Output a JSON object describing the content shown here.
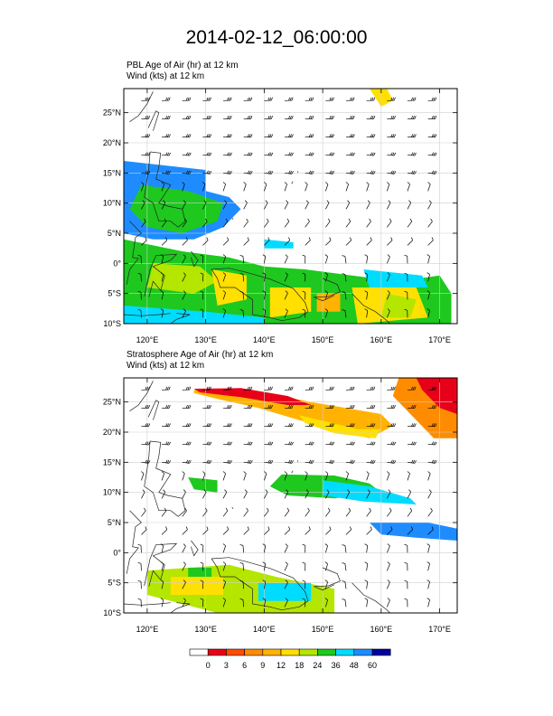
{
  "page": {
    "title": "2014-02-12_06:00:00"
  },
  "panels": [
    {
      "id": "pbl",
      "line1": "PBL Age of Air   (hr)     at   12 km",
      "line2": "Wind    (kts)     at   12 km",
      "lat_ticks": [
        "25°N",
        "20°N",
        "15°N",
        "10°N",
        "5°N",
        "0°",
        "5°S",
        "10°S"
      ],
      "lon_ticks": [
        "120°E",
        "130°E",
        "140°E",
        "150°E",
        "160°E",
        "170°E"
      ]
    },
    {
      "id": "strat",
      "line1": "Stratosphere Age of Air   (hr)     at   12 km",
      "line2": "Wind    (kts)     at   12 km",
      "lat_ticks": [
        "25°N",
        "20°N",
        "15°N",
        "10°N",
        "5°N",
        "0°",
        "5°S",
        "10°S"
      ],
      "lon_ticks": [
        "120°E",
        "130°E",
        "140°E",
        "150°E",
        "160°E",
        "170°E"
      ]
    }
  ],
  "map_extent": {
    "lon": [
      116,
      173
    ],
    "lat": [
      -10,
      29
    ]
  },
  "colorbar": {
    "labels": [
      "0",
      "3",
      "6",
      "9",
      "12",
      "18",
      "24",
      "36",
      "48",
      "60"
    ],
    "colors": [
      "#ffffff",
      "#e8001a",
      "#ff4d00",
      "#ff8c00",
      "#ffb300",
      "#ffe000",
      "#b4e600",
      "#1ec81e",
      "#00dcff",
      "#1e8cff",
      "#0000a0"
    ]
  }
}
